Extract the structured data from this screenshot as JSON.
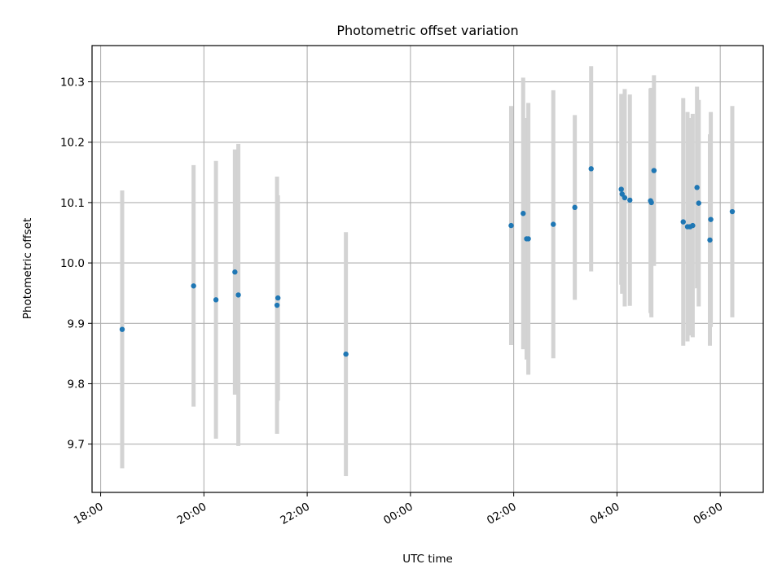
{
  "chart_data": {
    "type": "scatter",
    "title": "Photometric offset variation",
    "xlabel": "UTC time",
    "ylabel": "Photometric offset",
    "grid": true,
    "x_ticks": [
      "18:00",
      "20:00",
      "22:00",
      "00:00",
      "02:00",
      "04:00",
      "06:00"
    ],
    "y_ticks": [
      "9.7",
      "9.8",
      "9.9",
      "10.0",
      "10.1",
      "10.2",
      "10.3"
    ],
    "ylim": [
      9.62,
      10.36
    ],
    "xlim": [
      "17:50",
      "06:50"
    ],
    "colors": {
      "point": "#1f77b4",
      "errorbar": "#d3d3d3",
      "grid": "#b0b0b0"
    },
    "points": [
      {
        "x": "18:25",
        "y": 9.89,
        "err": 0.23
      },
      {
        "x": "19:48",
        "y": 9.962,
        "err": 0.2
      },
      {
        "x": "20:14",
        "y": 9.939,
        "err": 0.23
      },
      {
        "x": "20:36",
        "y": 9.985,
        "err": 0.203
      },
      {
        "x": "20:40",
        "y": 9.947,
        "err": 0.25
      },
      {
        "x": "21:25",
        "y": 9.93,
        "err": 0.213
      },
      {
        "x": "21:26",
        "y": 9.942,
        "err": 0.17
      },
      {
        "x": "22:45",
        "y": 9.849,
        "err": 0.202
      },
      {
        "x": "01:57",
        "y": 10.062,
        "err": 0.198
      },
      {
        "x": "02:11",
        "y": 10.082,
        "err": 0.225
      },
      {
        "x": "02:15",
        "y": 10.04,
        "err": 0.2
      },
      {
        "x": "02:17",
        "y": 10.04,
        "err": 0.225
      },
      {
        "x": "02:46",
        "y": 10.064,
        "err": 0.222
      },
      {
        "x": "03:11",
        "y": 10.092,
        "err": 0.153
      },
      {
        "x": "03:30",
        "y": 10.156,
        "err": 0.17
      },
      {
        "x": "04:05",
        "y": 10.122,
        "err": 0.158
      },
      {
        "x": "04:06",
        "y": 10.114,
        "err": 0.165
      },
      {
        "x": "04:09",
        "y": 10.108,
        "err": 0.18
      },
      {
        "x": "04:15",
        "y": 10.104,
        "err": 0.175
      },
      {
        "x": "04:39",
        "y": 10.103,
        "err": 0.186
      },
      {
        "x": "04:40",
        "y": 10.1,
        "err": 0.19
      },
      {
        "x": "04:43",
        "y": 10.153,
        "err": 0.158
      },
      {
        "x": "05:17",
        "y": 10.068,
        "err": 0.205
      },
      {
        "x": "05:22",
        "y": 10.06,
        "err": 0.19
      },
      {
        "x": "05:25",
        "y": 10.06,
        "err": 0.18
      },
      {
        "x": "05:28",
        "y": 10.062,
        "err": 0.185
      },
      {
        "x": "05:33",
        "y": 10.125,
        "err": 0.167
      },
      {
        "x": "05:35",
        "y": 10.099,
        "err": 0.171
      },
      {
        "x": "05:48",
        "y": 10.038,
        "err": 0.175
      },
      {
        "x": "05:49",
        "y": 10.072,
        "err": 0.178
      },
      {
        "x": "06:14",
        "y": 10.085,
        "err": 0.175
      }
    ]
  }
}
